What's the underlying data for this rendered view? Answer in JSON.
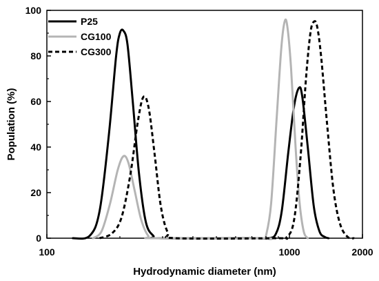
{
  "chart_data": {
    "type": "line",
    "title": "",
    "xlabel": "Hydrodynamic diameter (nm)",
    "ylabel": "Population (%)",
    "x_scale": "log",
    "xlim": [
      100,
      2000
    ],
    "ylim": [
      0,
      100
    ],
    "x_ticks": [
      100,
      1000,
      2000
    ],
    "x_tick_labels": [
      "100",
      "1000",
      "2000"
    ],
    "y_ticks": [
      0,
      20,
      40,
      60,
      80,
      100
    ],
    "y_tick_labels": [
      "0",
      "20",
      "40",
      "60",
      "80",
      "100"
    ],
    "grid": false,
    "legend_position": "top-left",
    "series": [
      {
        "name": "P25",
        "color": "#000000",
        "dash": "solid",
        "points": [
          [
            128,
            0
          ],
          [
            150,
            1
          ],
          [
            165,
            12
          ],
          [
            180,
            45
          ],
          [
            193,
            80
          ],
          [
            200,
            90
          ],
          [
            207,
            91
          ],
          [
            215,
            85
          ],
          [
            226,
            60
          ],
          [
            240,
            28
          ],
          [
            256,
            7
          ],
          [
            275,
            1
          ],
          [
            290,
            0
          ],
          [
            700,
            0
          ],
          [
            820,
            0
          ],
          [
            880,
            2
          ],
          [
            930,
            12
          ],
          [
            990,
            38
          ],
          [
            1045,
            58
          ],
          [
            1095,
            66
          ],
          [
            1130,
            62
          ],
          [
            1190,
            40
          ],
          [
            1260,
            14
          ],
          [
            1330,
            3
          ],
          [
            1400,
            0.5
          ],
          [
            1450,
            0
          ]
        ]
      },
      {
        "name": "CG100",
        "color": "#b4b4b4",
        "dash": "solid",
        "points": [
          [
            155,
            0
          ],
          [
            168,
            3
          ],
          [
            182,
            15
          ],
          [
            196,
            30
          ],
          [
            207,
            36
          ],
          [
            217,
            33
          ],
          [
            230,
            21
          ],
          [
            245,
            8
          ],
          [
            262,
            1
          ],
          [
            280,
            0
          ],
          [
            780,
            0
          ],
          [
            800,
            1
          ],
          [
            840,
            15
          ],
          [
            885,
            52
          ],
          [
            925,
            83
          ],
          [
            955,
            95
          ],
          [
            980,
            93
          ],
          [
            1015,
            75
          ],
          [
            1060,
            40
          ],
          [
            1100,
            16
          ],
          [
            1145,
            3
          ],
          [
            1190,
            0
          ]
        ]
      },
      {
        "name": "CG300",
        "color": "#000000",
        "dash": "dashed",
        "points": [
          [
            165,
            0
          ],
          [
            185,
            2
          ],
          [
            203,
            9
          ],
          [
            221,
            28
          ],
          [
            237,
            51
          ],
          [
            250,
            62
          ],
          [
            263,
            57
          ],
          [
            278,
            37
          ],
          [
            295,
            14
          ],
          [
            315,
            2.5
          ],
          [
            340,
            0
          ],
          [
            880,
            0
          ],
          [
            975,
            0.5
          ],
          [
            1045,
            8
          ],
          [
            1110,
            35
          ],
          [
            1170,
            70
          ],
          [
            1220,
            90
          ],
          [
            1260,
            95
          ],
          [
            1300,
            93
          ],
          [
            1350,
            80
          ],
          [
            1430,
            50
          ],
          [
            1520,
            21
          ],
          [
            1620,
            6
          ],
          [
            1740,
            0.5
          ],
          [
            1850,
            0
          ]
        ]
      }
    ]
  }
}
